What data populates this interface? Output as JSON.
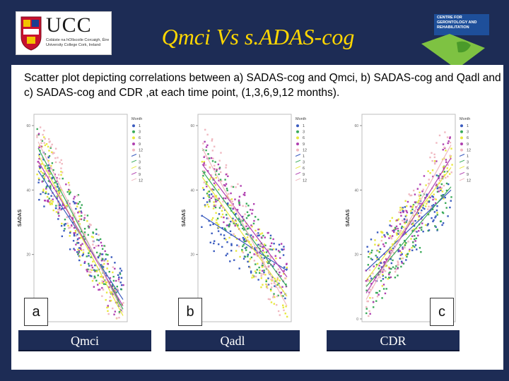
{
  "header": {
    "title": "Qmci Vs s.ADAS-cog",
    "ucc_logo": {
      "name": "UCC",
      "subtitle": "Coláiste na hOllscoile Corcaigh, Éire University College Cork, Ireland"
    },
    "centre_logo": {
      "text": "CENTRE FOR GERONTOLOGY AND REHABILITATION",
      "icon": "cgr-logo-icon"
    }
  },
  "caption": "Scatter plot depicting correlations between a) SADAS-cog and Qmci,  b) SADAS-cog and Qadl and c) SADAS-cog and CDR ,at each time point, (1,3,6,9,12 months).",
  "legend": {
    "title": "Month",
    "items": [
      "1",
      "3",
      "6",
      "9",
      "12",
      "1",
      "3",
      "6",
      "9",
      "12"
    ],
    "colors": [
      "#3a5bbf",
      "#3aaa5a",
      "#e8e840",
      "#b040b0",
      "#f0b8c0"
    ]
  },
  "chart_data": [
    {
      "type": "scatter",
      "panel_letter": "a",
      "xlabel": "Qmci",
      "ylabel": "SADAS",
      "yticks": [
        "0",
        "20",
        "40",
        "60"
      ],
      "ylim": [
        0,
        60
      ],
      "series": [
        {
          "name": "1",
          "fit": [
            [
              0,
              46
            ],
            [
              100,
              6
            ]
          ]
        },
        {
          "name": "3",
          "fit": [
            [
              0,
              53
            ],
            [
              100,
              3
            ]
          ]
        },
        {
          "name": "6",
          "fit": [
            [
              0,
              51
            ],
            [
              100,
              1
            ]
          ]
        },
        {
          "name": "9",
          "fit": [
            [
              0,
              49
            ],
            [
              100,
              4
            ]
          ]
        },
        {
          "name": "12",
          "fit": [
            [
              0,
              55
            ],
            [
              100,
              2
            ]
          ]
        }
      ],
      "points_direction": "negative"
    },
    {
      "type": "scatter",
      "panel_letter": "b",
      "xlabel": "Qadl",
      "ylabel": "SADAS",
      "yticks": [
        "0",
        "20",
        "40",
        "60"
      ],
      "ylim": [
        0,
        60
      ],
      "series": [
        {
          "name": "1",
          "fit": [
            [
              0,
              32
            ],
            [
              100,
              15
            ]
          ]
        },
        {
          "name": "3",
          "fit": [
            [
              0,
              46
            ],
            [
              100,
              10
            ]
          ]
        },
        {
          "name": "6",
          "fit": [
            [
              0,
              44
            ],
            [
              100,
              7
            ]
          ]
        },
        {
          "name": "9",
          "fit": [
            [
              0,
              48
            ],
            [
              100,
              13
            ]
          ]
        },
        {
          "name": "12",
          "fit": [
            [
              0,
              53
            ],
            [
              100,
              4
            ]
          ]
        }
      ],
      "points_direction": "negative"
    },
    {
      "type": "scatter",
      "panel_letter": "c",
      "xlabel": "CDR",
      "ylabel": "SADAS",
      "yticks": [
        "0",
        "20",
        "40",
        "60"
      ],
      "ylim": [
        0,
        60
      ],
      "series": [
        {
          "name": "1",
          "fit": [
            [
              0,
              15
            ],
            [
              100,
              40
            ]
          ]
        },
        {
          "name": "3",
          "fit": [
            [
              0,
              10
            ],
            [
              100,
              41
            ]
          ]
        },
        {
          "name": "6",
          "fit": [
            [
              0,
              12
            ],
            [
              100,
              47
            ]
          ]
        },
        {
          "name": "9",
          "fit": [
            [
              0,
              8
            ],
            [
              100,
              50
            ]
          ]
        },
        {
          "name": "12",
          "fit": [
            [
              0,
              6
            ],
            [
              100,
              54
            ]
          ]
        }
      ],
      "points_direction": "positive"
    }
  ]
}
